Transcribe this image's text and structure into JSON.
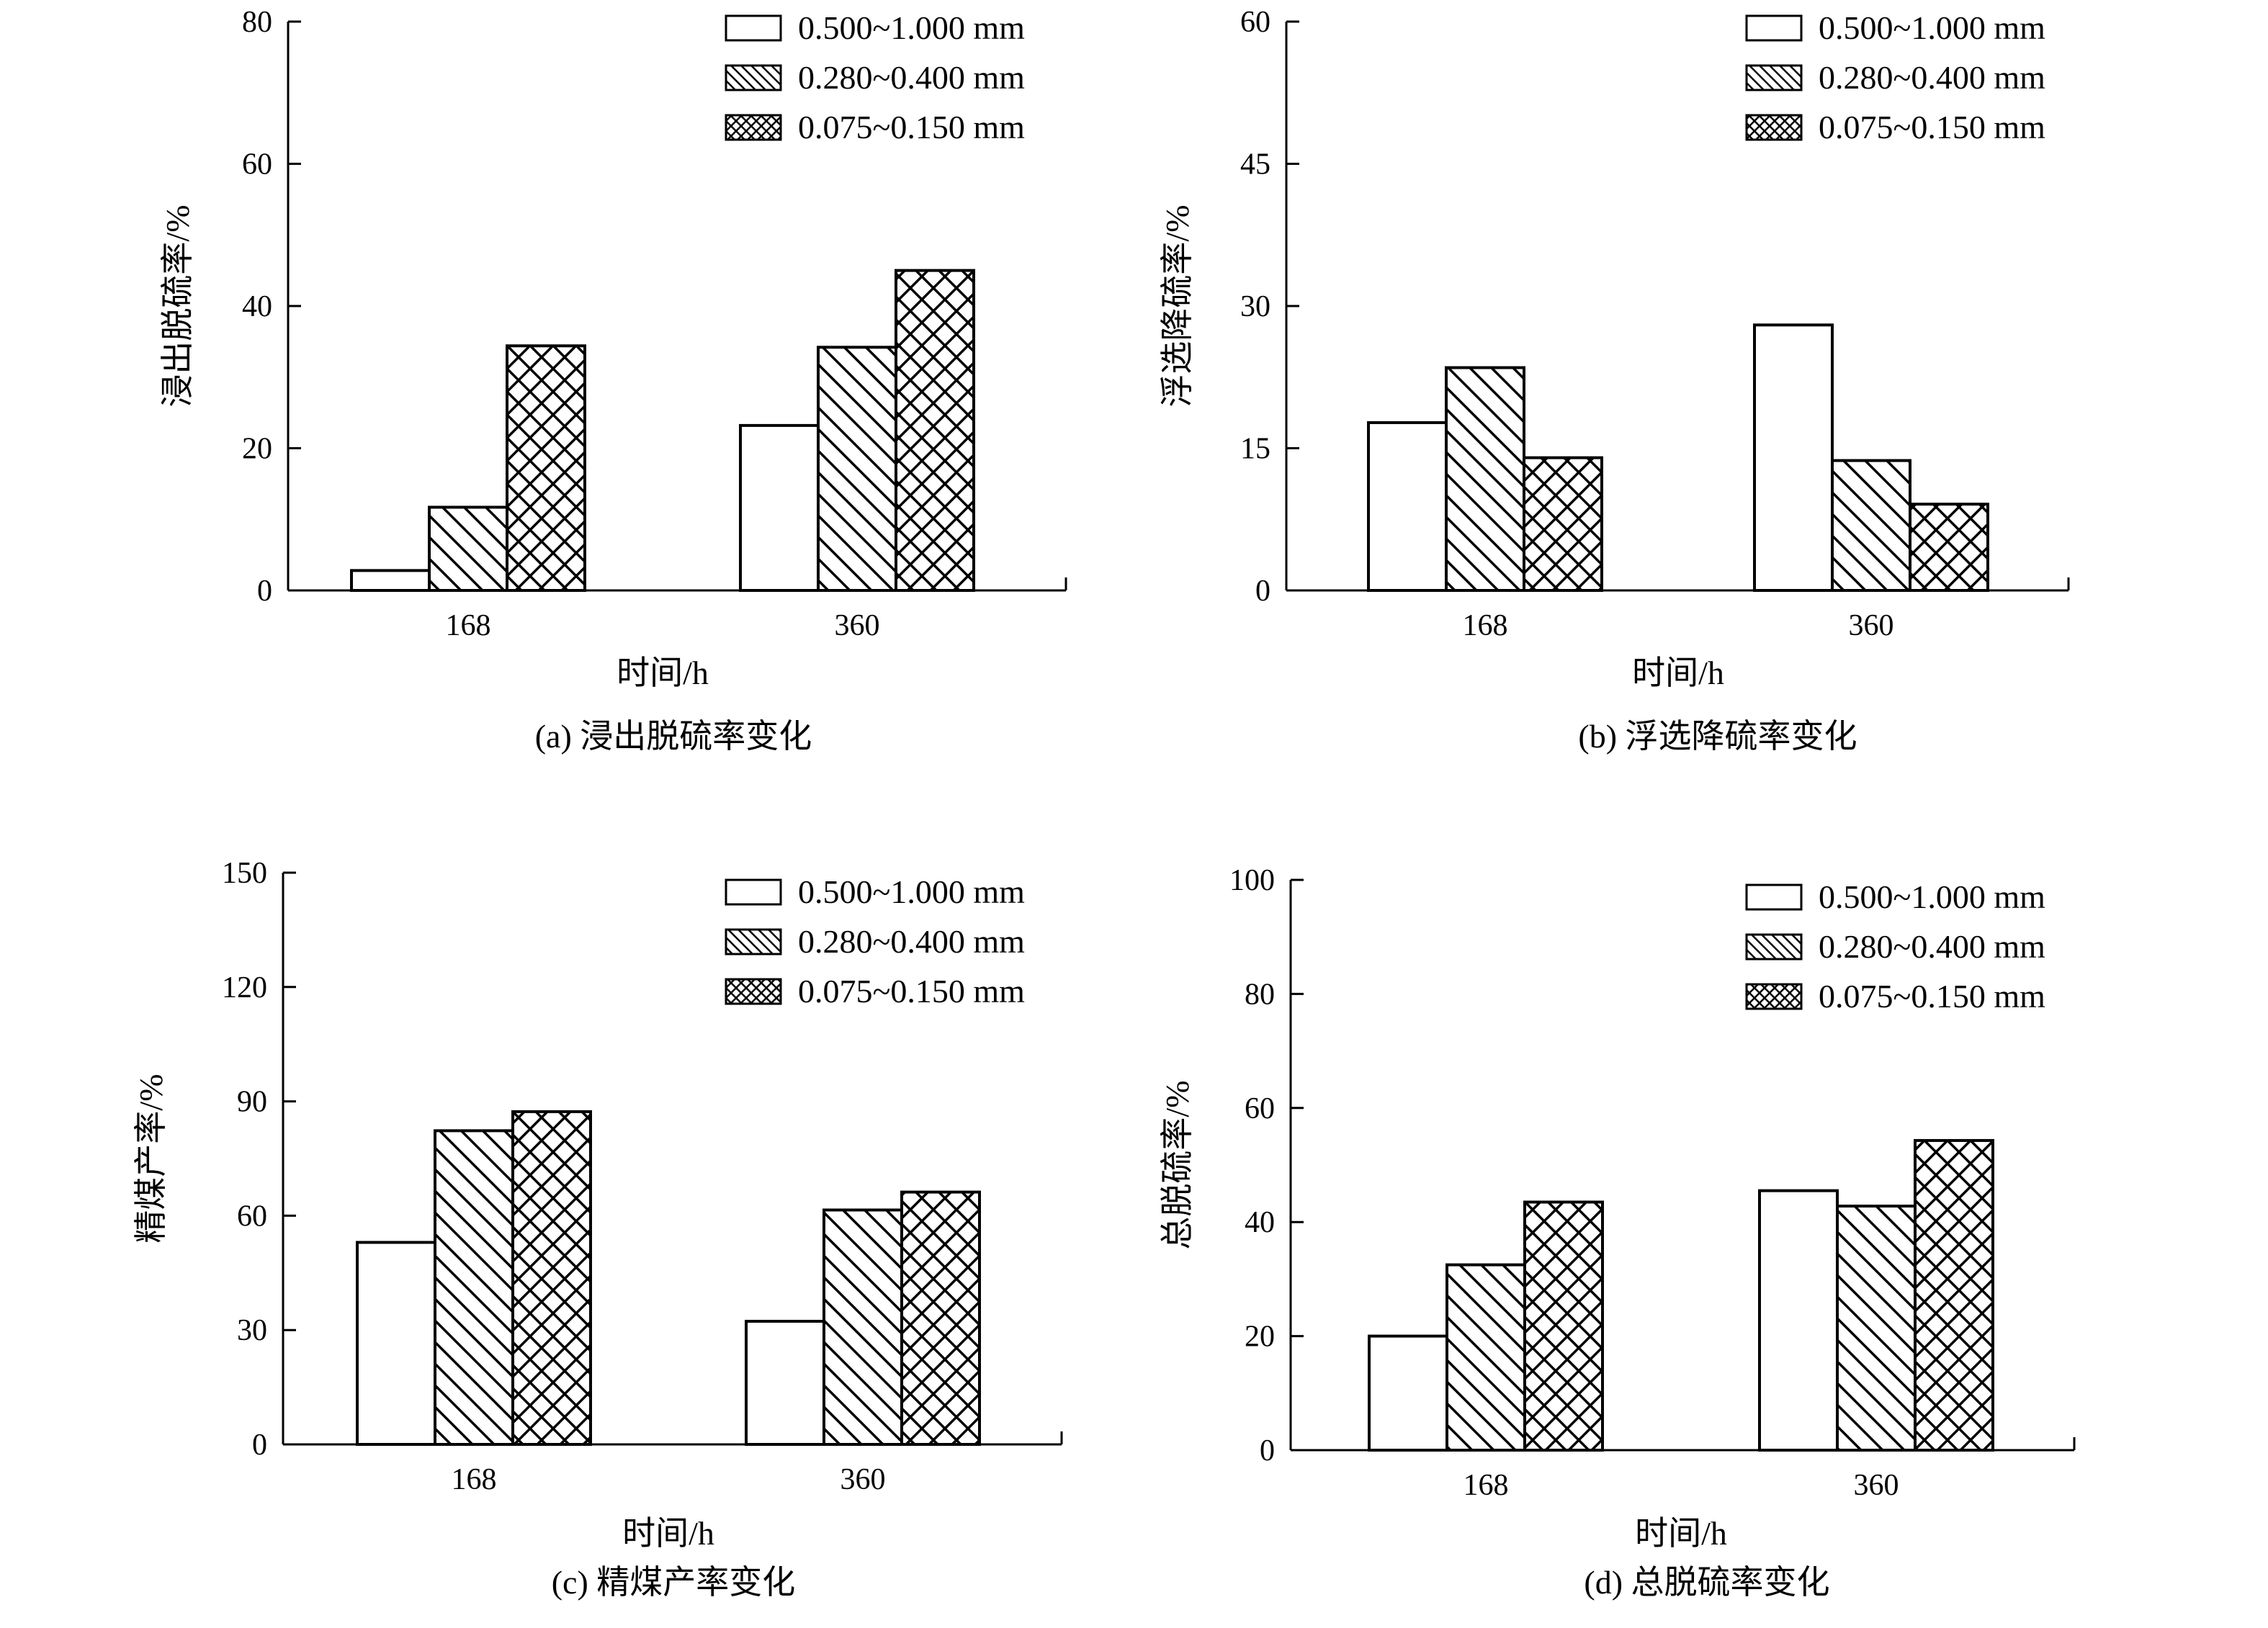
{
  "figure": {
    "legend_labels": [
      "0.500~1.000 mm",
      "0.280~0.400 mm",
      "0.075~0.150 mm"
    ],
    "series_patterns": [
      "open",
      "diagonal-hatch",
      "cross-hatch"
    ],
    "colors": {
      "ink": "#000000",
      "background": "#ffffff"
    }
  },
  "chart_data": [
    {
      "id": "a",
      "type": "bar",
      "caption": "(a) 浸出脱硫率变化",
      "xlabel": "时间/h",
      "ylabel": "浸出脱硫率/%",
      "categories": [
        "168",
        "360"
      ],
      "ylim": [
        0,
        80
      ],
      "yticks": [
        0,
        20,
        40,
        60,
        80
      ],
      "grid": false,
      "legend_position": "top-right",
      "series": [
        {
          "name": "0.500~1.000 mm",
          "values": [
            2.8,
            23.2
          ]
        },
        {
          "name": "0.280~0.400 mm",
          "values": [
            11.7,
            34.2
          ]
        },
        {
          "name": "0.075~0.150 mm",
          "values": [
            34.4,
            45.0
          ]
        }
      ]
    },
    {
      "id": "b",
      "type": "bar",
      "caption": "(b) 浮选降硫率变化",
      "xlabel": "时间/h",
      "ylabel": "浮选降硫率/%",
      "categories": [
        "168",
        "360"
      ],
      "ylim": [
        0,
        60
      ],
      "yticks": [
        0,
        15,
        30,
        45,
        60
      ],
      "grid": false,
      "legend_position": "top-right",
      "series": [
        {
          "name": "0.500~1.000 mm",
          "values": [
            17.7,
            28.0
          ]
        },
        {
          "name": "0.280~0.400 mm",
          "values": [
            23.5,
            13.7
          ]
        },
        {
          "name": "0.075~0.150 mm",
          "values": [
            14.0,
            9.1
          ]
        }
      ]
    },
    {
      "id": "c",
      "type": "bar",
      "caption": "(c) 精煤产率变化",
      "xlabel": "时间/h",
      "ylabel": "精煤产率/%",
      "categories": [
        "168",
        "360"
      ],
      "ylim": [
        0,
        150
      ],
      "yticks": [
        0,
        30,
        60,
        90,
        120,
        150
      ],
      "grid": false,
      "legend_position": "top-right",
      "series": [
        {
          "name": "0.500~1.000 mm",
          "values": [
            53.0,
            32.3
          ]
        },
        {
          "name": "0.280~0.400 mm",
          "values": [
            82.3,
            61.5
          ]
        },
        {
          "name": "0.075~0.150 mm",
          "values": [
            87.3,
            66.2
          ]
        }
      ]
    },
    {
      "id": "d",
      "type": "bar",
      "caption": "(d) 总脱硫率变化",
      "xlabel": "时间/h",
      "ylabel": "总脱硫率/%",
      "categories": [
        "168",
        "360"
      ],
      "ylim": [
        0,
        100
      ],
      "yticks": [
        0,
        20,
        40,
        60,
        80,
        100
      ],
      "grid": false,
      "legend_position": "top-right",
      "series": [
        {
          "name": "0.500~1.000 mm",
          "values": [
            20.0,
            45.5
          ]
        },
        {
          "name": "0.280~0.400 mm",
          "values": [
            32.5,
            42.8
          ]
        },
        {
          "name": "0.075~0.150 mm",
          "values": [
            43.5,
            54.3
          ]
        }
      ]
    }
  ]
}
